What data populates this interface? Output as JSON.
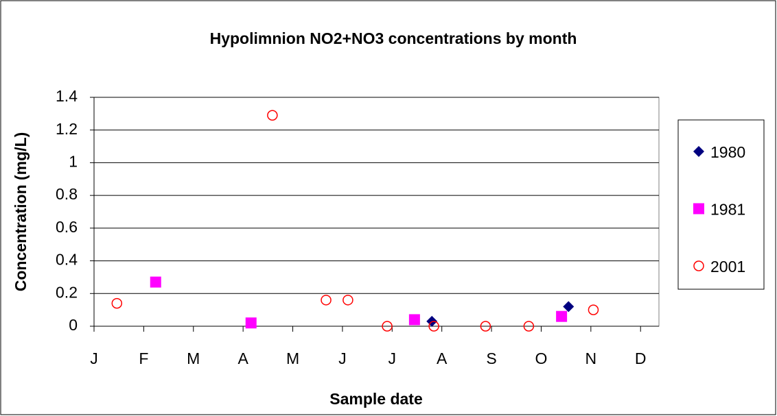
{
  "chart_data": {
    "type": "scatter",
    "title": "Hypolimnion NO2+NO3 concentrations by month",
    "x_label": "Sample date",
    "y_label": "Concentration (mg/L)",
    "series": [
      {
        "name": "1980",
        "color": "#000080",
        "marker": "diamond",
        "x": [
          6.8,
          9.55
        ],
        "values": [
          0.03,
          0.12
        ]
      },
      {
        "name": "1981",
        "color": "#ff00ff",
        "marker": "square",
        "x": [
          1.24,
          3.16,
          6.45,
          9.41
        ],
        "values": [
          0.27,
          0.02,
          0.04,
          0.06
        ]
      },
      {
        "name": "2001",
        "color": "#ff0000",
        "marker": "circle",
        "x": [
          0.46,
          3.59,
          4.67,
          5.11,
          5.9,
          6.84,
          7.88,
          8.75,
          10.05
        ],
        "values": [
          0.14,
          1.29,
          0.16,
          0.16,
          0,
          0,
          0,
          0,
          0.1
        ]
      }
    ],
    "xlim": [
      0,
      11.37
    ],
    "xticks": [
      {
        "value": 0,
        "label": "J"
      },
      {
        "value": 1,
        "label": "F"
      },
      {
        "value": 2,
        "label": "M"
      },
      {
        "value": 3,
        "label": "A"
      },
      {
        "value": 4,
        "label": "M"
      },
      {
        "value": 5,
        "label": "J"
      },
      {
        "value": 6,
        "label": "J"
      },
      {
        "value": 7,
        "label": "A"
      },
      {
        "value": 8,
        "label": "S"
      },
      {
        "value": 9,
        "label": "O"
      },
      {
        "value": 10,
        "label": "N"
      },
      {
        "value": 11,
        "label": "D"
      }
    ],
    "ylim": [
      0,
      1.4
    ],
    "yticks": [
      0,
      0.2,
      0.4,
      0.6,
      0.8,
      1,
      1.2,
      1.4
    ],
    "grid": true,
    "legend": "right"
  }
}
